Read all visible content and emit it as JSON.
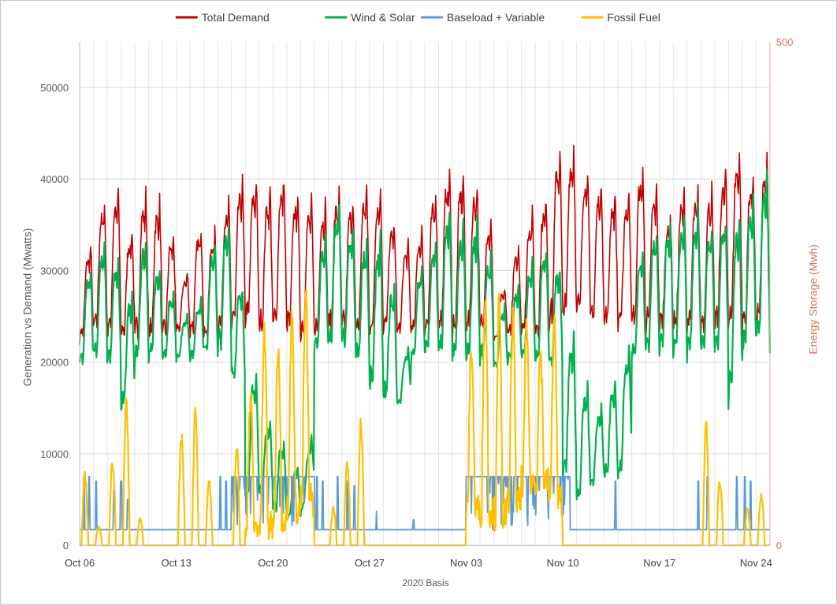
{
  "chart_data": {
    "type": "line",
    "title": "",
    "xlabel": "2020 Basis",
    "ylabel": "Generation vs Demand (Mwatts)",
    "y2label": "Energy Storage (Mwh)",
    "ylim": [
      0,
      55000
    ],
    "y2lim": [
      0,
      500
    ],
    "x_range_days": [
      0,
      50
    ],
    "y_ticks": [
      0,
      10000,
      20000,
      30000,
      40000,
      50000
    ],
    "y2_ticks": [
      0,
      500
    ],
    "x_ticks": [
      {
        "label": "Oct 06",
        "day": 0
      },
      {
        "label": "Oct 13",
        "day": 7
      },
      {
        "label": "Oct 20",
        "day": 14
      },
      {
        "label": "Oct 27",
        "day": 21
      },
      {
        "label": "Nov 03",
        "day": 28
      },
      {
        "label": "Nov 10",
        "day": 35
      },
      {
        "label": "Nov 17",
        "day": 42
      },
      {
        "label": "Nov 24",
        "day": 49
      }
    ],
    "grid": true,
    "legend_position": "top",
    "series": [
      {
        "name": "Total Demand",
        "color": "#c00000",
        "legend_label": "Total Demand",
        "daily_peaks": [
          32000,
          37500,
          40000,
          34000,
          38800,
          38500,
          35000,
          29000,
          35000,
          34000,
          37500,
          40000,
          40500,
          39000,
          41000,
          39000,
          38000,
          37500,
          39000,
          38000,
          39500,
          40000,
          36000,
          33000,
          34000,
          38500,
          41500,
          41000,
          40500,
          37000,
          27500,
          32000,
          36500,
          37500,
          43500,
          44500,
          42000,
          40000,
          39000,
          38500,
          42000,
          40000,
          36000,
          39000,
          39000,
          39000,
          41000,
          44000,
          41000,
          42500
        ],
        "daily_troughs": [
          22000,
          22500,
          22000,
          22000,
          21500,
          21500,
          22000,
          23000,
          22500,
          22000,
          22500,
          23000,
          23500,
          22500,
          22500,
          22500,
          22000,
          22000,
          22500,
          22500,
          22000,
          22000,
          23000,
          22500,
          22500,
          22500,
          22500,
          22000,
          22500,
          22500,
          22000,
          22500,
          22500,
          22000,
          23000,
          23500,
          24000,
          23500,
          23000,
          23000,
          22500,
          22500,
          23000,
          22500,
          22500,
          22500,
          22500,
          23000,
          22500,
          22500
        ]
      },
      {
        "name": "Wind & Solar",
        "color": "#00b050",
        "legend_label": "Wind & Solar",
        "daily_peaks": [
          30000,
          33000,
          32000,
          27000,
          34000,
          31000,
          28000,
          25000,
          26000,
          33000,
          36500,
          30000,
          20000,
          14000,
          12000,
          9000,
          8000,
          33000,
          38000,
          35000,
          33500,
          34500,
          30000,
          20000,
          30000,
          33000,
          37000,
          35000,
          36000,
          33000,
          26000,
          28000,
          31000,
          33000,
          32000,
          24000,
          18000,
          15000,
          18000,
          20000,
          32000,
          34500,
          35000,
          36000,
          37000,
          35000,
          36000,
          36500,
          38000,
          40500
        ],
        "daily_troughs": [
          19000,
          20000,
          19500,
          14000,
          19500,
          20000,
          20000,
          20000,
          20000,
          20500,
          20500,
          18000,
          5000,
          5000,
          3000,
          2500,
          3000,
          20500,
          20500,
          21000,
          19500,
          16000,
          15000,
          15000,
          19500,
          20500,
          20000,
          19500,
          19000,
          19500,
          19000,
          19500,
          20000,
          19500,
          19500,
          7000,
          4000,
          6000,
          6500,
          6500,
          20000,
          20500,
          20500,
          20500,
          20000,
          20500,
          20000,
          15000,
          20000,
          21000
        ]
      },
      {
        "name": "Baseload + Variable",
        "color": "#5b9bd5",
        "legend_label": "Baseload +  Variable",
        "base_level": 1700,
        "high_level": 7500,
        "high_day_ranges": [
          [
            11,
            17
          ],
          [
            28,
            35.5
          ]
        ],
        "spikes": [
          {
            "day": 0.3,
            "v": 7500
          },
          {
            "day": 0.7,
            "v": 7500
          },
          {
            "day": 1.2,
            "v": 7000
          },
          {
            "day": 2.5,
            "v": 6000
          },
          {
            "day": 3,
            "v": 7000
          },
          {
            "day": 3.5,
            "v": 5000
          },
          {
            "day": 10.2,
            "v": 7500
          },
          {
            "day": 10.6,
            "v": 7000
          },
          {
            "day": 17.2,
            "v": 7500
          },
          {
            "day": 17.6,
            "v": 7000
          },
          {
            "day": 18.7,
            "v": 7500
          },
          {
            "day": 19.4,
            "v": 7000
          },
          {
            "day": 19.9,
            "v": 6500
          },
          {
            "day": 21.5,
            "v": 3700
          },
          {
            "day": 24.2,
            "v": 2800
          },
          {
            "day": 38.8,
            "v": 7000
          },
          {
            "day": 44.8,
            "v": 7000
          },
          {
            "day": 45.5,
            "v": 7500
          },
          {
            "day": 47.6,
            "v": 7500
          },
          {
            "day": 48.2,
            "v": 7500
          },
          {
            "day": 48.6,
            "v": 7000
          }
        ]
      },
      {
        "name": "Fossil Fuel",
        "color": "#ffc000",
        "legend_label": "Fossil Fuel",
        "daily_peaks": [
          7500,
          2000,
          9000,
          15000,
          3000,
          0,
          0,
          12000,
          14000,
          7000,
          0,
          10500,
          16000,
          23000,
          22000,
          25000,
          27000,
          0,
          4000,
          9000,
          13500,
          0,
          0,
          0,
          0,
          0,
          0,
          0,
          21500,
          27000,
          26000,
          25000,
          23000,
          21000,
          24500,
          0,
          0,
          0,
          0,
          0,
          0,
          0,
          0,
          0,
          0,
          13000,
          7000,
          0,
          4000,
          5500
        ],
        "daily_troughs": [
          0,
          0,
          0,
          0,
          0,
          0,
          0,
          0,
          0,
          0,
          0,
          0,
          2000,
          2000,
          3000,
          4000,
          5000,
          0,
          0,
          0,
          0,
          0,
          0,
          0,
          0,
          0,
          0,
          0,
          4000,
          4000,
          3500,
          4500,
          7000,
          7000,
          5000,
          0,
          0,
          0,
          0,
          0,
          0,
          0,
          0,
          0,
          0,
          0,
          0,
          0,
          0,
          0
        ]
      }
    ]
  }
}
